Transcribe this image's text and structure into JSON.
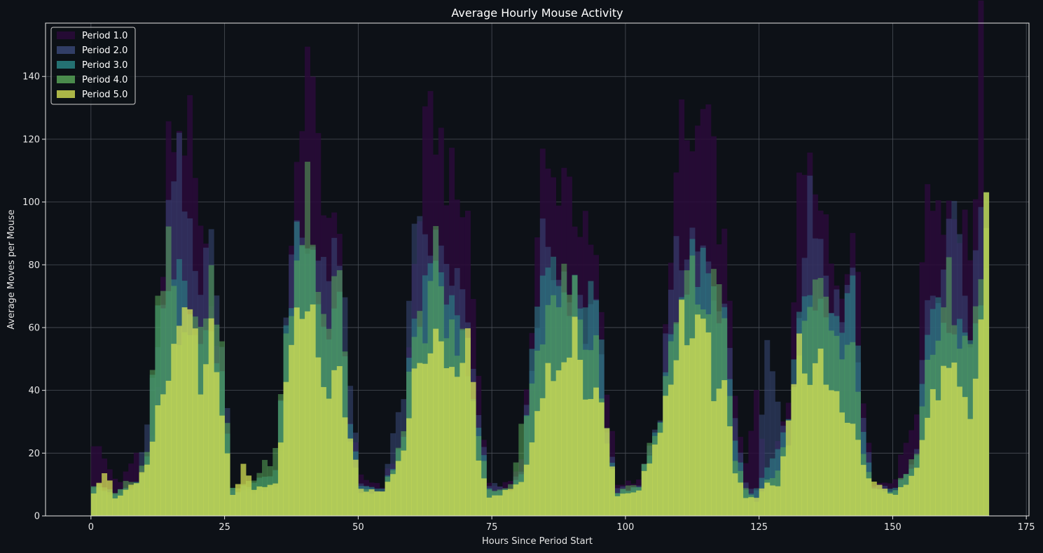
{
  "chart_data": {
    "type": "area",
    "title": "Average Hourly Mouse Activity",
    "xlabel": "Hours Since Period Start",
    "ylabel": "Average Moves per Mouse",
    "xlim": [
      -8.5,
      175.5
    ],
    "ylim": [
      0,
      157
    ],
    "xticks": [
      0,
      25,
      50,
      75,
      100,
      125,
      150,
      175
    ],
    "yticks": [
      0,
      20,
      40,
      60,
      80,
      100,
      120,
      140
    ],
    "grid": true,
    "legend_position": "top-left",
    "background_color": "#0d1117",
    "grid_color": "#4a4f57",
    "anchors": [
      [
        [
          0,
          24
        ],
        [
          3,
          15
        ],
        [
          5,
          10
        ],
        [
          8,
          20
        ],
        [
          10,
          10
        ],
        [
          12,
          40
        ],
        [
          14,
          116
        ],
        [
          16,
          125
        ],
        [
          18,
          120
        ],
        [
          20,
          85
        ],
        [
          22,
          75
        ],
        [
          24,
          30
        ],
        [
          26,
          8
        ],
        [
          30,
          8
        ],
        [
          34,
          10
        ],
        [
          36,
          35
        ],
        [
          38,
          120
        ],
        [
          40,
          140
        ],
        [
          42,
          118
        ],
        [
          44,
          95
        ],
        [
          46,
          85
        ],
        [
          48,
          30
        ],
        [
          50,
          12
        ],
        [
          54,
          10
        ],
        [
          58,
          25
        ],
        [
          60,
          80
        ],
        [
          62,
          118
        ],
        [
          64,
          126
        ],
        [
          66,
          110
        ],
        [
          68,
          100
        ],
        [
          70,
          95
        ],
        [
          72,
          45
        ],
        [
          74,
          10
        ],
        [
          78,
          10
        ],
        [
          80,
          20
        ],
        [
          82,
          60
        ],
        [
          84,
          110
        ],
        [
          86,
          105
        ],
        [
          88,
          112
        ],
        [
          90,
          100
        ],
        [
          92,
          88
        ],
        [
          94,
          80
        ],
        [
          96,
          40
        ],
        [
          98,
          10
        ],
        [
          102,
          12
        ],
        [
          106,
          25
        ],
        [
          108,
          90
        ],
        [
          110,
          120
        ],
        [
          112,
          115
        ],
        [
          114,
          126
        ],
        [
          116,
          110
        ],
        [
          118,
          85
        ],
        [
          120,
          40
        ],
        [
          122,
          15
        ],
        [
          124,
          38
        ],
        [
          126,
          10
        ],
        [
          130,
          40
        ],
        [
          132,
          100
        ],
        [
          134,
          122
        ],
        [
          136,
          110
        ],
        [
          138,
          80
        ],
        [
          140,
          72
        ],
        [
          142,
          100
        ],
        [
          144,
          40
        ],
        [
          146,
          10
        ],
        [
          150,
          12
        ],
        [
          154,
          35
        ],
        [
          156,
          110
        ],
        [
          158,
          100
        ],
        [
          160,
          100
        ],
        [
          162,
          95
        ],
        [
          164,
          88
        ],
        [
          165,
          100
        ],
        [
          166,
          150
        ],
        [
          167,
          40
        ]
      ],
      [
        [
          0,
          10
        ],
        [
          4,
          6
        ],
        [
          8,
          10
        ],
        [
          12,
          50
        ],
        [
          14,
          95
        ],
        [
          16,
          110
        ],
        [
          18,
          86
        ],
        [
          20,
          70
        ],
        [
          22,
          101
        ],
        [
          24,
          55
        ],
        [
          26,
          8
        ],
        [
          30,
          8
        ],
        [
          34,
          10
        ],
        [
          36,
          60
        ],
        [
          38,
          95
        ],
        [
          40,
          85
        ],
        [
          42,
          90
        ],
        [
          44,
          75
        ],
        [
          46,
          85
        ],
        [
          48,
          40
        ],
        [
          50,
          10
        ],
        [
          54,
          8
        ],
        [
          58,
          40
        ],
        [
          60,
          85
        ],
        [
          62,
          90
        ],
        [
          64,
          85
        ],
        [
          66,
          80
        ],
        [
          68,
          75
        ],
        [
          70,
          60
        ],
        [
          72,
          30
        ],
        [
          74,
          10
        ],
        [
          78,
          8
        ],
        [
          80,
          15
        ],
        [
          82,
          50
        ],
        [
          84,
          85
        ],
        [
          86,
          75
        ],
        [
          88,
          70
        ],
        [
          90,
          72
        ],
        [
          92,
          60
        ],
        [
          94,
          70
        ],
        [
          96,
          30
        ],
        [
          98,
          8
        ],
        [
          102,
          10
        ],
        [
          106,
          30
        ],
        [
          108,
          75
        ],
        [
          110,
          88
        ],
        [
          112,
          85
        ],
        [
          114,
          90
        ],
        [
          116,
          75
        ],
        [
          118,
          70
        ],
        [
          120,
          30
        ],
        [
          122,
          10
        ],
        [
          124,
          8
        ],
        [
          126,
          55
        ],
        [
          128,
          40
        ],
        [
          130,
          20
        ],
        [
          132,
          70
        ],
        [
          134,
          104
        ],
        [
          136,
          88
        ],
        [
          138,
          70
        ],
        [
          140,
          65
        ],
        [
          142,
          80
        ],
        [
          144,
          30
        ],
        [
          146,
          10
        ],
        [
          150,
          8
        ],
        [
          154,
          20
        ],
        [
          156,
          70
        ],
        [
          158,
          65
        ],
        [
          160,
          90
        ],
        [
          162,
          93
        ],
        [
          164,
          55
        ],
        [
          166,
          100
        ],
        [
          167,
          80
        ]
      ],
      [
        [
          0,
          10
        ],
        [
          4,
          7
        ],
        [
          8,
          10
        ],
        [
          10,
          20
        ],
        [
          12,
          65
        ],
        [
          14,
          80
        ],
        [
          16,
          82
        ],
        [
          18,
          70
        ],
        [
          20,
          60
        ],
        [
          22,
          55
        ],
        [
          24,
          50
        ],
        [
          26,
          8
        ],
        [
          30,
          10
        ],
        [
          34,
          15
        ],
        [
          36,
          55
        ],
        [
          38,
          90
        ],
        [
          40,
          88
        ],
        [
          42,
          75
        ],
        [
          44,
          60
        ],
        [
          46,
          75
        ],
        [
          48,
          30
        ],
        [
          50,
          10
        ],
        [
          54,
          8
        ],
        [
          58,
          25
        ],
        [
          60,
          65
        ],
        [
          62,
          70
        ],
        [
          64,
          75
        ],
        [
          66,
          70
        ],
        [
          68,
          60
        ],
        [
          70,
          50
        ],
        [
          72,
          28
        ],
        [
          74,
          8
        ],
        [
          78,
          8
        ],
        [
          80,
          15
        ],
        [
          82,
          50
        ],
        [
          84,
          80
        ],
        [
          86,
          75
        ],
        [
          88,
          72
        ],
        [
          90,
          70
        ],
        [
          92,
          65
        ],
        [
          94,
          77
        ],
        [
          96,
          25
        ],
        [
          98,
          8
        ],
        [
          102,
          10
        ],
        [
          106,
          30
        ],
        [
          108,
          60
        ],
        [
          110,
          70
        ],
        [
          112,
          80
        ],
        [
          114,
          85
        ],
        [
          116,
          70
        ],
        [
          118,
          65
        ],
        [
          120,
          25
        ],
        [
          122,
          8
        ],
        [
          124,
          8
        ],
        [
          126,
          15
        ],
        [
          128,
          20
        ],
        [
          130,
          30
        ],
        [
          132,
          60
        ],
        [
          134,
          70
        ],
        [
          136,
          65
        ],
        [
          138,
          60
        ],
        [
          140,
          55
        ],
        [
          142,
          80
        ],
        [
          144,
          25
        ],
        [
          146,
          8
        ],
        [
          150,
          8
        ],
        [
          154,
          20
        ],
        [
          156,
          60
        ],
        [
          158,
          65
        ],
        [
          160,
          60
        ],
        [
          162,
          65
        ],
        [
          164,
          50
        ],
        [
          166,
          70
        ],
        [
          167,
          100
        ]
      ],
      [
        [
          0,
          10
        ],
        [
          4,
          8
        ],
        [
          8,
          12
        ],
        [
          10,
          20
        ],
        [
          12,
          68
        ],
        [
          14,
          94
        ],
        [
          16,
          58
        ],
        [
          18,
          60
        ],
        [
          20,
          56
        ],
        [
          22,
          72
        ],
        [
          24,
          52
        ],
        [
          26,
          8
        ],
        [
          30,
          12
        ],
        [
          34,
          20
        ],
        [
          36,
          55
        ],
        [
          38,
          80
        ],
        [
          40,
          105
        ],
        [
          42,
          70
        ],
        [
          44,
          65
        ],
        [
          46,
          75
        ],
        [
          48,
          25
        ],
        [
          50,
          8
        ],
        [
          54,
          8
        ],
        [
          58,
          25
        ],
        [
          60,
          58
        ],
        [
          62,
          62
        ],
        [
          64,
          85
        ],
        [
          66,
          60
        ],
        [
          68,
          55
        ],
        [
          70,
          55
        ],
        [
          72,
          25
        ],
        [
          74,
          8
        ],
        [
          78,
          10
        ],
        [
          80,
          27
        ],
        [
          82,
          45
        ],
        [
          84,
          60
        ],
        [
          86,
          65
        ],
        [
          88,
          75
        ],
        [
          90,
          70
        ],
        [
          92,
          55
        ],
        [
          94,
          62
        ],
        [
          96,
          22
        ],
        [
          98,
          8
        ],
        [
          102,
          10
        ],
        [
          106,
          33
        ],
        [
          108,
          55
        ],
        [
          110,
          63
        ],
        [
          112,
          78
        ],
        [
          114,
          60
        ],
        [
          116,
          80
        ],
        [
          118,
          65
        ],
        [
          120,
          18
        ],
        [
          122,
          8
        ],
        [
          124,
          5
        ],
        [
          126,
          12
        ],
        [
          128,
          15
        ],
        [
          130,
          25
        ],
        [
          132,
          55
        ],
        [
          134,
          66
        ],
        [
          136,
          72
        ],
        [
          138,
          60
        ],
        [
          140,
          50
        ],
        [
          142,
          62
        ],
        [
          144,
          20
        ],
        [
          146,
          8
        ],
        [
          150,
          8
        ],
        [
          154,
          20
        ],
        [
          156,
          50
        ],
        [
          158,
          60
        ],
        [
          160,
          74
        ],
        [
          162,
          60
        ],
        [
          164,
          50
        ],
        [
          166,
          71
        ],
        [
          167,
          98
        ]
      ],
      [
        [
          0,
          8
        ],
        [
          2,
          15
        ],
        [
          4,
          6
        ],
        [
          8,
          10
        ],
        [
          10,
          15
        ],
        [
          12,
          32
        ],
        [
          14,
          45
        ],
        [
          16,
          60
        ],
        [
          18,
          74
        ],
        [
          20,
          35
        ],
        [
          22,
          59
        ],
        [
          24,
          30
        ],
        [
          26,
          7
        ],
        [
          28,
          15
        ],
        [
          30,
          8
        ],
        [
          34,
          10
        ],
        [
          36,
          40
        ],
        [
          38,
          60
        ],
        [
          40,
          73
        ],
        [
          42,
          51
        ],
        [
          44,
          40
        ],
        [
          46,
          45
        ],
        [
          48,
          25
        ],
        [
          50,
          8
        ],
        [
          54,
          8
        ],
        [
          58,
          20
        ],
        [
          60,
          50
        ],
        [
          62,
          55
        ],
        [
          64,
          57
        ],
        [
          66,
          45
        ],
        [
          68,
          40
        ],
        [
          70,
          58
        ],
        [
          72,
          20
        ],
        [
          74,
          6
        ],
        [
          78,
          8
        ],
        [
          80,
          10
        ],
        [
          82,
          25
        ],
        [
          84,
          40
        ],
        [
          86,
          48
        ],
        [
          88,
          45
        ],
        [
          90,
          65
        ],
        [
          92,
          35
        ],
        [
          94,
          45
        ],
        [
          96,
          28
        ],
        [
          98,
          6
        ],
        [
          102,
          8
        ],
        [
          106,
          28
        ],
        [
          108,
          45
        ],
        [
          110,
          65
        ],
        [
          112,
          55
        ],
        [
          114,
          69
        ],
        [
          116,
          40
        ],
        [
          118,
          45
        ],
        [
          120,
          15
        ],
        [
          122,
          6
        ],
        [
          124,
          6
        ],
        [
          126,
          10
        ],
        [
          128,
          10
        ],
        [
          130,
          30
        ],
        [
          132,
          57
        ],
        [
          134,
          45
        ],
        [
          136,
          50
        ],
        [
          138,
          40
        ],
        [
          140,
          35
        ],
        [
          142,
          30
        ],
        [
          144,
          17
        ],
        [
          146,
          10
        ],
        [
          148,
          8
        ],
        [
          150,
          6
        ],
        [
          154,
          15
        ],
        [
          156,
          35
        ],
        [
          158,
          40
        ],
        [
          160,
          48
        ],
        [
          162,
          40
        ],
        [
          164,
          35
        ],
        [
          166,
          62
        ],
        [
          167,
          106
        ]
      ]
    ],
    "series": [
      {
        "name": "Period 1.0",
        "color": "#2a0a3a",
        "opacity": 0.85
      },
      {
        "name": "Period 2.0",
        "color": "#3b4a7a",
        "opacity": 0.55
      },
      {
        "name": "Period 3.0",
        "color": "#2a8a8a",
        "opacity": 0.55
      },
      {
        "name": "Period 4.0",
        "color": "#5aaa5a",
        "opacity": 0.55
      },
      {
        "name": "Period 5.0",
        "color": "#d4e054",
        "opacity": 0.75
      }
    ]
  }
}
